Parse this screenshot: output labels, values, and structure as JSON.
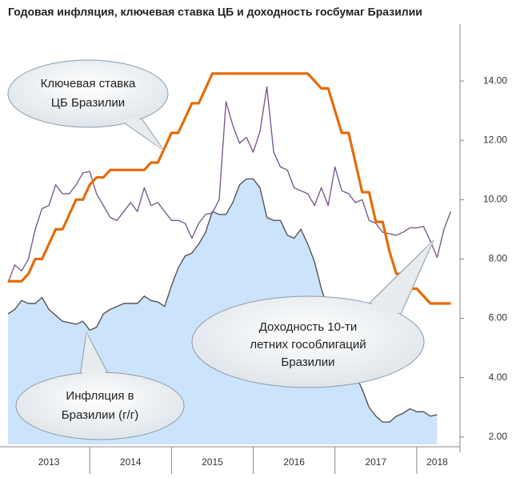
{
  "chart_data": {
    "type": "combo",
    "title": "Годовая инфляция, ключевая ставка ЦБ и доходность госбумаг Бразилии",
    "x": [
      2013.0,
      2013.083,
      2013.167,
      2013.25,
      2013.333,
      2013.417,
      2013.5,
      2013.583,
      2013.667,
      2013.75,
      2013.833,
      2013.917,
      2014.0,
      2014.083,
      2014.167,
      2014.25,
      2014.333,
      2014.417,
      2014.5,
      2014.583,
      2014.667,
      2014.75,
      2014.833,
      2014.917,
      2015.0,
      2015.083,
      2015.167,
      2015.25,
      2015.333,
      2015.417,
      2015.5,
      2015.583,
      2015.667,
      2015.75,
      2015.833,
      2015.917,
      2016.0,
      2016.083,
      2016.167,
      2016.25,
      2016.333,
      2016.417,
      2016.5,
      2016.583,
      2016.667,
      2016.75,
      2016.833,
      2016.917,
      2017.0,
      2017.083,
      2017.167,
      2017.25,
      2017.333,
      2017.417,
      2017.5,
      2017.583,
      2017.667,
      2017.75,
      2017.833,
      2017.917,
      2018.0,
      2018.083,
      2018.167,
      2018.25,
      2018.333,
      2018.417
    ],
    "series": [
      {
        "type": "area",
        "color": "#cce4fb",
        "line_color": "#555555",
        "values": [
          6.15,
          6.3,
          6.6,
          6.5,
          6.5,
          6.7,
          6.3,
          6.1,
          5.9,
          5.85,
          5.8,
          5.9,
          5.6,
          5.7,
          6.15,
          6.3,
          6.4,
          6.5,
          6.5,
          6.5,
          6.75,
          6.6,
          6.55,
          6.4,
          7.1,
          7.7,
          8.1,
          8.2,
          8.5,
          8.9,
          9.6,
          9.5,
          9.5,
          9.9,
          10.5,
          10.7,
          10.7,
          10.4,
          9.4,
          9.3,
          9.3,
          8.8,
          8.7,
          9.0,
          8.5,
          7.9,
          7.0,
          6.3,
          5.4,
          4.8,
          4.6,
          4.1,
          3.6,
          3.0,
          2.7,
          2.5,
          2.5,
          2.7,
          2.8,
          2.95,
          2.85,
          2.85,
          2.7,
          2.75,
          null,
          null
        ]
      },
      {
        "type": "line",
        "color": "#7b5c8e",
        "values": [
          7.2,
          7.8,
          7.6,
          8.0,
          9.0,
          9.7,
          9.8,
          10.5,
          10.2,
          10.2,
          10.5,
          10.9,
          10.95,
          10.2,
          9.8,
          9.4,
          9.3,
          9.6,
          9.9,
          9.6,
          10.4,
          9.8,
          9.9,
          9.6,
          9.3,
          9.3,
          9.2,
          8.7,
          9.2,
          9.5,
          9.55,
          10.0,
          13.3,
          12.5,
          11.9,
          12.1,
          11.6,
          12.3,
          13.8,
          11.6,
          11.1,
          11.0,
          10.4,
          10.3,
          10.2,
          9.8,
          10.4,
          9.8,
          11.1,
          10.3,
          10.2,
          9.9,
          10.0,
          9.3,
          9.2,
          8.9,
          8.85,
          8.8,
          8.9,
          9.05,
          9.05,
          9.1,
          8.6,
          8.05,
          9.0,
          9.6
        ]
      },
      {
        "type": "line",
        "color": "#e46c0a",
        "values": [
          7.25,
          7.25,
          7.25,
          7.5,
          8.0,
          8.0,
          8.5,
          9.0,
          9.0,
          9.5,
          10.0,
          10.0,
          10.5,
          10.75,
          10.75,
          11.0,
          11.0,
          11.0,
          11.0,
          11.0,
          11.0,
          11.25,
          11.25,
          11.75,
          12.25,
          12.25,
          12.75,
          13.25,
          13.25,
          13.75,
          14.25,
          14.25,
          14.25,
          14.25,
          14.25,
          14.25,
          14.25,
          14.25,
          14.25,
          14.25,
          14.25,
          14.25,
          14.25,
          14.25,
          14.25,
          14.0,
          13.75,
          13.75,
          13.0,
          12.25,
          12.25,
          11.25,
          10.25,
          10.25,
          9.25,
          9.25,
          8.25,
          7.5,
          7.5,
          7.0,
          7.0,
          6.75,
          6.5,
          6.5,
          6.5,
          6.5
        ]
      }
    ],
    "xlim": [
      2013,
      2018.5
    ],
    "xticks": [
      2014,
      2015,
      2016,
      2017,
      2018
    ],
    "year_labels": [
      "2013",
      "2014",
      "2015",
      "2016",
      "2017",
      "2018"
    ],
    "ylim": [
      1.75,
      15.65
    ],
    "yticks": [
      {
        "value": 2,
        "label": "2.00"
      },
      {
        "value": 4,
        "label": "4.00"
      },
      {
        "value": 6,
        "label": "6.00"
      },
      {
        "value": 8,
        "label": "8.00"
      },
      {
        "value": 10,
        "label": "10.00"
      },
      {
        "value": 12,
        "label": "12.00"
      },
      {
        "value": 14,
        "label": "14.00"
      }
    ],
    "annotations": [
      {
        "lines": [
          "Ключевая ставка",
          "ЦБ Бразилии"
        ]
      },
      {
        "lines": [
          "Доходность  10-ти",
          "летних гособлигаций",
          "Бразилии"
        ]
      },
      {
        "lines": [
          "Инфляция в",
          "Бразилии (г/г)"
        ]
      }
    ]
  }
}
